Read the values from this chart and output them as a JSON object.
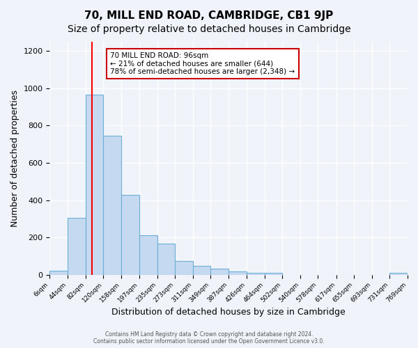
{
  "title": "70, MILL END ROAD, CAMBRIDGE, CB1 9JP",
  "subtitle": "Size of property relative to detached houses in Cambridge",
  "xlabel": "Distribution of detached houses by size in Cambridge",
  "ylabel": "Number of detached properties",
  "bar_color": "#c5d9f1",
  "bar_edge_color": "#6baed6",
  "bin_labels": [
    "6sqm",
    "44sqm",
    "82sqm",
    "120sqm",
    "158sqm",
    "197sqm",
    "235sqm",
    "273sqm",
    "311sqm",
    "349sqm",
    "387sqm",
    "426sqm",
    "464sqm",
    "502sqm",
    "540sqm",
    "578sqm",
    "617sqm",
    "655sqm",
    "693sqm",
    "731sqm",
    "769sqm"
  ],
  "bin_edges": [
    6,
    44,
    82,
    120,
    158,
    197,
    235,
    273,
    311,
    349,
    387,
    426,
    464,
    502,
    540,
    578,
    617,
    655,
    693,
    731,
    769
  ],
  "bar_heights": [
    20,
    305,
    965,
    745,
    430,
    213,
    165,
    72,
    47,
    32,
    18,
    10,
    8,
    0,
    0,
    0,
    0,
    0,
    0,
    10
  ],
  "red_line_x": 96,
  "annotation_text": "70 MILL END ROAD: 96sqm\n← 21% of detached houses are smaller (644)\n78% of semi-detached houses are larger (2,348) →",
  "annotation_box_color": "#ffffff",
  "annotation_box_edge": "#cc0000",
  "ylim": [
    0,
    1250
  ],
  "yticks": [
    0,
    200,
    400,
    600,
    800,
    1000,
    1200
  ],
  "footer_text": "Contains HM Land Registry data © Crown copyright and database right 2024.\nContains public sector information licensed under the Open Government Licence v3.0.",
  "background_color": "#f0f4fa",
  "grid_color": "#ffffff",
  "title_fontsize": 11,
  "subtitle_fontsize": 10,
  "label_fontsize": 9
}
